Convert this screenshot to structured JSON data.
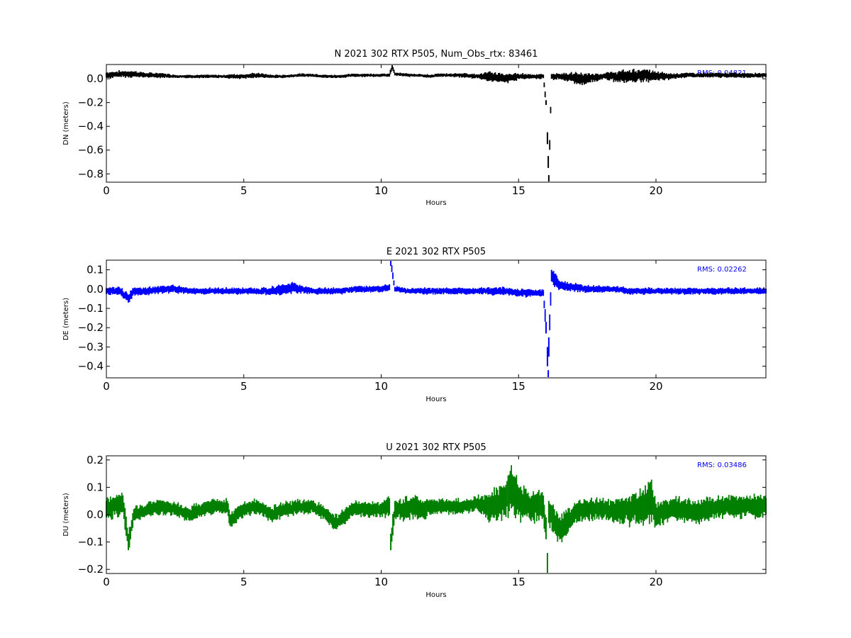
{
  "figure": {
    "background": "#ffffff"
  },
  "chart_data": [
    {
      "type": "scatter",
      "title": "N 2021 302 RTX  P505, Num_Obs_rtx: 83461",
      "xlabel": "Hours",
      "ylabel": "DN (meters)",
      "xlim": [
        0,
        24
      ],
      "ylim": [
        -0.87,
        0.12
      ],
      "xticks": [
        0,
        5,
        10,
        15,
        20
      ],
      "xtick_labels": [
        "0",
        "5",
        "10",
        "15",
        "20"
      ],
      "yticks": [
        0.0,
        -0.2,
        -0.4,
        -0.6,
        -0.8
      ],
      "ytick_labels": [
        "0.0",
        "−0.2",
        "−0.4",
        "−0.6",
        "−0.8"
      ],
      "annotation": "RMS:  0.04821",
      "annotation_color": "#0000ff",
      "color": "#000000",
      "grid": false,
      "series": [
        {
          "x": [
            0,
            0.5,
            1,
            1.5,
            2,
            2.5,
            3,
            3.5,
            4,
            4.4,
            4.5,
            5,
            5.5,
            6,
            6.5,
            7,
            7.5,
            8,
            8.5,
            9,
            9.5,
            10,
            10.3,
            10.4,
            10.5,
            11,
            11.2,
            11.4,
            11.8,
            12,
            12.5,
            13,
            13.5,
            14,
            14.5,
            15,
            15.5,
            15.9,
            16.0,
            16.05,
            16.08,
            16.1,
            16.2,
            16.5,
            17,
            17.2,
            17.5,
            18,
            18.5,
            19,
            19.5,
            20,
            20.5,
            21,
            21.5,
            22,
            22.5,
            23,
            23.5,
            24
          ],
          "y": [
            0.03,
            0.04,
            0.04,
            0.03,
            0.03,
            0.02,
            0.02,
            0.02,
            0.02,
            0.02,
            0.02,
            0.02,
            0.03,
            0.02,
            0.02,
            0.03,
            0.03,
            0.02,
            0.02,
            0.03,
            0.03,
            0.03,
            0.03,
            0.1,
            0.04,
            0.03,
            0.03,
            0.03,
            0.02,
            0.03,
            0.03,
            0.03,
            0.02,
            0.02,
            0.0,
            0.02,
            0.02,
            0.02,
            -0.2,
            -0.5,
            -0.7,
            -0.85,
            0.02,
            0.02,
            0.01,
            0.0,
            0.0,
            0.02,
            0.02,
            0.02,
            0.03,
            0.02,
            0.02,
            0.03,
            0.03,
            0.03,
            0.03,
            0.03,
            0.03,
            0.03
          ],
          "spread": [
            0.02,
            0.02,
            0.02,
            0.015,
            0.015,
            0.01,
            0.01,
            0.01,
            0.01,
            0.01,
            0.015,
            0.015,
            0.015,
            0.01,
            0.01,
            0.01,
            0.01,
            0.01,
            0.01,
            0.01,
            0.01,
            0.01,
            0.01,
            0.02,
            0.01,
            0.01,
            0.01,
            0.01,
            0.01,
            0.01,
            0.01,
            0.015,
            0.015,
            0.03,
            0.03,
            0.02,
            0.015,
            0.015,
            0.02,
            0.05,
            0.05,
            0.04,
            0.02,
            0.02,
            0.03,
            0.04,
            0.03,
            0.02,
            0.03,
            0.04,
            0.04,
            0.03,
            0.02,
            0.015,
            0.015,
            0.015,
            0.015,
            0.015,
            0.015,
            0.015
          ]
        }
      ]
    },
    {
      "type": "scatter",
      "title": "E 2021 302 RTX  P505",
      "xlabel": "Hours",
      "ylabel": "DE (meters)",
      "xlim": [
        0,
        24
      ],
      "ylim": [
        -0.46,
        0.15
      ],
      "xticks": [
        0,
        5,
        10,
        15,
        20
      ],
      "xtick_labels": [
        "0",
        "5",
        "10",
        "15",
        "20"
      ],
      "yticks": [
        0.1,
        0.0,
        -0.1,
        -0.2,
        -0.3,
        -0.4
      ],
      "ytick_labels": [
        "0.1",
        "0.0",
        "−0.1",
        "−0.2",
        "−0.3",
        "−0.4"
      ],
      "annotation": "RMS:  0.02262",
      "annotation_color": "#0000ff",
      "color": "#0000ff",
      "grid": false,
      "series": [
        {
          "x": [
            0,
            0.5,
            0.8,
            1,
            1.5,
            2,
            2.5,
            3,
            3.5,
            4,
            4.4,
            4.5,
            5,
            5.5,
            6,
            6.5,
            6.8,
            7,
            7.5,
            8,
            8.5,
            9,
            9.5,
            10,
            10.3,
            10.35,
            10.5,
            11,
            11.2,
            11.4,
            12,
            12.5,
            13,
            13.5,
            14,
            14.5,
            15,
            15.5,
            15.9,
            16.0,
            16.05,
            16.08,
            16.1,
            16.2,
            16.5,
            17,
            17.5,
            18,
            18.5,
            19,
            19.5,
            20,
            20.5,
            21,
            21.5,
            22,
            22.5,
            23,
            23.5,
            24
          ],
          "y": [
            -0.01,
            -0.01,
            -0.05,
            -0.01,
            -0.01,
            0.0,
            0.0,
            -0.01,
            -0.01,
            -0.01,
            -0.01,
            -0.01,
            -0.01,
            -0.01,
            -0.01,
            0.0,
            0.01,
            0.0,
            -0.01,
            -0.01,
            -0.01,
            0.0,
            0.0,
            0.0,
            0.01,
            0.14,
            0.0,
            -0.01,
            -0.01,
            -0.01,
            -0.01,
            -0.01,
            -0.01,
            -0.01,
            -0.01,
            -0.01,
            -0.02,
            -0.02,
            -0.02,
            -0.2,
            -0.35,
            -0.45,
            -0.3,
            0.07,
            0.02,
            0.01,
            0.0,
            0.0,
            0.0,
            -0.01,
            -0.01,
            -0.01,
            -0.01,
            -0.01,
            -0.01,
            -0.01,
            -0.01,
            -0.01,
            -0.01,
            -0.01
          ],
          "spread": [
            0.015,
            0.015,
            0.02,
            0.015,
            0.015,
            0.015,
            0.015,
            0.012,
            0.012,
            0.012,
            0.012,
            0.012,
            0.012,
            0.012,
            0.015,
            0.02,
            0.02,
            0.015,
            0.012,
            0.012,
            0.012,
            0.012,
            0.012,
            0.012,
            0.015,
            0.02,
            0.012,
            0.01,
            0.01,
            0.012,
            0.012,
            0.012,
            0.012,
            0.012,
            0.015,
            0.015,
            0.015,
            0.015,
            0.015,
            0.03,
            0.05,
            0.03,
            0.05,
            0.03,
            0.02,
            0.015,
            0.015,
            0.012,
            0.012,
            0.012,
            0.012,
            0.012,
            0.012,
            0.012,
            0.012,
            0.012,
            0.012,
            0.012,
            0.012,
            0.012
          ]
        }
      ]
    },
    {
      "type": "scatter",
      "title": "U 2021 302 RTX  P505",
      "xlabel": "Hours",
      "ylabel": "DU (meters)",
      "xlim": [
        0,
        24
      ],
      "ylim": [
        -0.215,
        0.215
      ],
      "xticks": [
        0,
        5,
        10,
        15,
        20
      ],
      "xtick_labels": [
        "0",
        "5",
        "10",
        "15",
        "20"
      ],
      "yticks": [
        0.2,
        0.1,
        0.0,
        -0.1,
        -0.2
      ],
      "ytick_labels": [
        "0.2",
        "0.1",
        "0.0",
        "−0.1",
        "−0.2"
      ],
      "annotation": "RMS:  0.03486",
      "annotation_color": "#0000ff",
      "color": "#007f00",
      "grid": false,
      "series": [
        {
          "x": [
            0,
            0.3,
            0.6,
            0.8,
            1,
            1.5,
            2,
            2.5,
            3,
            3.5,
            4,
            4.4,
            4.5,
            5,
            5.5,
            6,
            6.5,
            7,
            7.5,
            8,
            8.3,
            8.5,
            9,
            9.5,
            10,
            10.3,
            10.35,
            10.5,
            11,
            11.2,
            11.4,
            12,
            12.5,
            13,
            13.5,
            14,
            14.5,
            14.7,
            15,
            15.5,
            15.9,
            16.0,
            16.05,
            16.1,
            16.3,
            16.5,
            17,
            17.5,
            18,
            18.5,
            19,
            19.5,
            19.8,
            20,
            20.5,
            21,
            21.5,
            22,
            22.5,
            23,
            23.5,
            24
          ],
          "y": [
            0.02,
            0.03,
            0.04,
            -0.1,
            0.0,
            0.02,
            0.03,
            0.02,
            0.0,
            0.02,
            0.03,
            0.03,
            -0.02,
            0.02,
            0.03,
            0.0,
            0.02,
            0.03,
            0.03,
            0.0,
            -0.03,
            -0.02,
            0.02,
            0.02,
            0.02,
            0.03,
            -0.1,
            0.02,
            0.02,
            0.03,
            0.02,
            0.03,
            0.03,
            0.03,
            0.04,
            0.03,
            0.05,
            0.1,
            0.05,
            0.03,
            0.03,
            -0.05,
            -0.18,
            0.01,
            -0.02,
            -0.05,
            0.0,
            0.02,
            0.02,
            0.01,
            0.02,
            0.03,
            0.06,
            0.0,
            0.02,
            0.02,
            0.01,
            0.02,
            0.03,
            0.03,
            0.03,
            0.03
          ],
          "spread": [
            0.03,
            0.03,
            0.03,
            0.03,
            0.02,
            0.02,
            0.02,
            0.02,
            0.02,
            0.02,
            0.02,
            0.02,
            0.02,
            0.02,
            0.02,
            0.02,
            0.02,
            0.02,
            0.02,
            0.02,
            0.02,
            0.02,
            0.02,
            0.02,
            0.02,
            0.03,
            0.03,
            0.03,
            0.03,
            0.03,
            0.03,
            0.02,
            0.02,
            0.02,
            0.02,
            0.04,
            0.05,
            0.06,
            0.05,
            0.04,
            0.04,
            0.04,
            0.04,
            0.04,
            0.04,
            0.04,
            0.03,
            0.03,
            0.03,
            0.03,
            0.04,
            0.05,
            0.06,
            0.04,
            0.03,
            0.03,
            0.03,
            0.03,
            0.03,
            0.03,
            0.03,
            0.03
          ]
        }
      ]
    }
  ]
}
